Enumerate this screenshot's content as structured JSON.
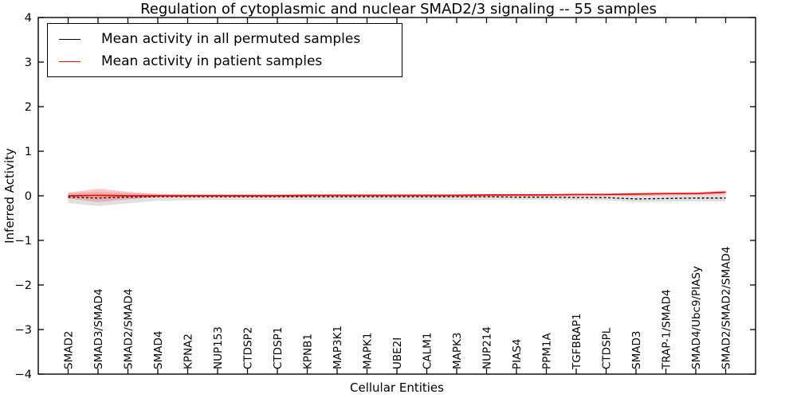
{
  "figure": {
    "background": "#ffffff"
  },
  "chart_data": {
    "type": "line",
    "title": "Regulation of cytoplasmic and nuclear SMAD2/3 signaling -- 55 samples",
    "xlabel": "Cellular Entities",
    "ylabel": "Inferred Activity",
    "xlim": [
      -1,
      23
    ],
    "ylim": [
      -4,
      4
    ],
    "yticks": [
      -4,
      -3,
      -2,
      -1,
      0,
      1,
      2,
      3,
      4
    ],
    "grid": false,
    "legend_position": "upper left",
    "categories": [
      "SMAD2",
      "SMAD3/SMAD4",
      "SMAD2/SMAD4",
      "SMAD4",
      "KPNA2",
      "NUP153",
      "CTDSP2",
      "CTDSP1",
      "KPNB1",
      "MAP3K1",
      "MAPK1",
      "UBE2I",
      "CALM1",
      "MAPK3",
      "NUP214",
      "PIAS4",
      "PPM1A",
      "TGFBRAP1",
      "CTDSPL",
      "SMAD3",
      "TRAP-1/SMAD4",
      "SMAD4/Ubc9/PIASy",
      "SMAD2/SMAD2/SMAD4"
    ],
    "series": [
      {
        "name": "Mean activity in all permuted samples",
        "color": "#000000",
        "line_style": "dashed",
        "values": [
          -0.03,
          -0.05,
          -0.03,
          -0.02,
          -0.02,
          -0.02,
          -0.02,
          -0.02,
          -0.02,
          -0.02,
          -0.02,
          -0.02,
          -0.02,
          -0.02,
          -0.02,
          -0.03,
          -0.03,
          -0.04,
          -0.04,
          -0.07,
          -0.06,
          -0.05,
          -0.05
        ],
        "band_upper": [
          0.06,
          0.09,
          0.06,
          0.04,
          0.04,
          0.04,
          0.04,
          0.04,
          0.04,
          0.04,
          0.04,
          0.04,
          0.04,
          0.04,
          0.04,
          0.04,
          0.03,
          0.03,
          0.03,
          0.03,
          0.03,
          0.03,
          0.03
        ],
        "band_lower": [
          -0.16,
          -0.23,
          -0.17,
          -0.11,
          -0.1,
          -0.09,
          -0.09,
          -0.09,
          -0.09,
          -0.09,
          -0.09,
          -0.09,
          -0.09,
          -0.09,
          -0.09,
          -0.09,
          -0.09,
          -0.1,
          -0.1,
          -0.14,
          -0.13,
          -0.12,
          -0.13
        ],
        "band_color": "#000000",
        "band_opacity": 0.12
      },
      {
        "name": "Mean activity in patient samples",
        "color": "#ff0000",
        "line_style": "solid",
        "values": [
          0.0,
          0.01,
          0.0,
          0.0,
          0.0,
          0.0,
          0.0,
          0.0,
          0.01,
          0.01,
          0.01,
          0.01,
          0.01,
          0.01,
          0.02,
          0.02,
          0.02,
          0.03,
          0.03,
          0.04,
          0.05,
          0.05,
          0.08
        ],
        "band_upper": [
          0.07,
          0.16,
          0.09,
          0.04,
          0.03,
          0.03,
          0.03,
          0.03,
          0.03,
          0.03,
          0.03,
          0.03,
          0.03,
          0.03,
          0.03,
          0.04,
          0.04,
          0.04,
          0.05,
          0.06,
          0.07,
          0.08,
          0.12
        ],
        "band_lower": [
          -0.06,
          -0.14,
          -0.08,
          -0.03,
          -0.02,
          -0.02,
          -0.02,
          -0.02,
          -0.02,
          -0.02,
          -0.02,
          -0.02,
          -0.02,
          -0.02,
          -0.02,
          -0.01,
          -0.01,
          -0.01,
          0.0,
          0.0,
          0.01,
          0.02,
          0.03
        ],
        "band_color": "#ff0000",
        "band_opacity": 0.22
      }
    ]
  }
}
